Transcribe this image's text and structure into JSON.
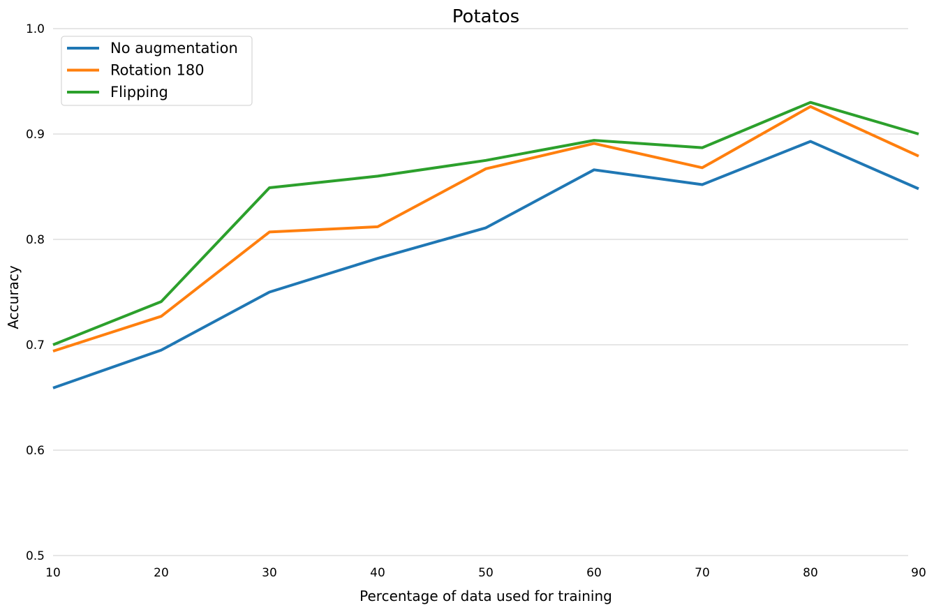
{
  "chart_data": {
    "type": "line",
    "title": "Potatos",
    "xlabel": "Percentage of data used for training",
    "ylabel": "Accuracy",
    "x": [
      10,
      20,
      30,
      40,
      50,
      60,
      70,
      80,
      90
    ],
    "xlim": [
      10,
      90
    ],
    "ylim": [
      0.5,
      1.0
    ],
    "xticks": [
      "10",
      "20",
      "30",
      "40",
      "50",
      "60",
      "70",
      "80",
      "90"
    ],
    "yticks": [
      "0.5",
      "0.6",
      "0.7",
      "0.8",
      "0.9",
      "1.0"
    ],
    "grid": "horizontal",
    "legend_position": "top-left",
    "series": [
      {
        "name": "No augmentation",
        "color": "#1f77b4",
        "values": [
          0.659,
          0.695,
          0.75,
          0.782,
          0.811,
          0.866,
          0.852,
          0.893,
          0.848
        ]
      },
      {
        "name": "Rotation 180",
        "color": "#ff7f0e",
        "values": [
          0.694,
          0.727,
          0.807,
          0.812,
          0.867,
          0.891,
          0.868,
          0.926,
          0.879
        ]
      },
      {
        "name": "Flipping",
        "color": "#2ca02c",
        "values": [
          0.7,
          0.741,
          0.849,
          0.86,
          0.875,
          0.894,
          0.887,
          0.93,
          0.9
        ]
      }
    ]
  }
}
